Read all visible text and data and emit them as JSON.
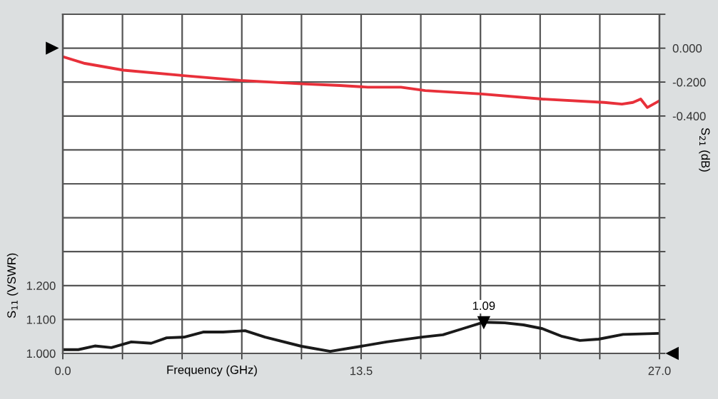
{
  "chart_data": {
    "type": "line",
    "xlabel": "Frequency (GHz)",
    "ylabel": "S$_{11}$ (VSWR)",
    "y2label": "S$_{21}$ (dB)",
    "grid": true,
    "legend": false,
    "marker": "none",
    "line_style": "solid",
    "xlim": [
      0,
      27
    ],
    "xticks": [
      {
        "value": 0,
        "label": "0.0"
      },
      {
        "value": 2.7,
        "label": null
      },
      {
        "value": 5.4,
        "label": null
      },
      {
        "value": 8.1,
        "label": null
      },
      {
        "value": 10.8,
        "label": null
      },
      {
        "value": 13.5,
        "label": "13.5"
      },
      {
        "value": 16.2,
        "label": null
      },
      {
        "value": 18.9,
        "label": null
      },
      {
        "value": 21.6,
        "label": null
      },
      {
        "value": 24.3,
        "label": null
      },
      {
        "value": 27,
        "label": "27.0"
      }
    ],
    "ylim": [
      1.0,
      2.0
    ],
    "yticks": [
      {
        "value": 1.0,
        "label": "1.000"
      },
      {
        "value": 1.1,
        "label": "1.100"
      },
      {
        "value": 1.2,
        "label": "1.200"
      },
      {
        "value": 1.3,
        "label": null
      },
      {
        "value": 1.4,
        "label": null
      },
      {
        "value": 1.5,
        "label": null
      },
      {
        "value": 1.6,
        "label": null
      },
      {
        "value": 1.7,
        "label": null
      },
      {
        "value": 1.8,
        "label": null
      },
      {
        "value": 1.9,
        "label": null
      },
      {
        "value": 2.0,
        "label": null
      }
    ],
    "y2lim": [
      -1.8,
      0.2
    ],
    "y2ticks": [
      {
        "value": 0.2,
        "label": null
      },
      {
        "value": 0,
        "label": "0.000"
      },
      {
        "value": -0.2,
        "label": "-0.200"
      },
      {
        "value": -0.4,
        "label": "-0.400"
      },
      {
        "value": -0.6,
        "label": null
      },
      {
        "value": -0.8,
        "label": null
      },
      {
        "value": -1.0,
        "label": null
      },
      {
        "value": -1.2,
        "label": null
      },
      {
        "value": -1.4,
        "label": null
      },
      {
        "value": -1.6,
        "label": null
      },
      {
        "value": -1.8,
        "label": null
      }
    ],
    "series": [
      {
        "color": "#1a1a1a",
        "x": [
          0,
          0.7,
          1.45,
          2.2,
          3.1,
          4.0,
          4.7,
          5.5,
          6.35,
          7.25,
          8.25,
          9.15,
          10.8,
          12.1,
          13.4,
          14.65,
          16.25,
          17.2,
          18.1,
          19.05,
          20.0,
          20.85,
          21.7,
          22.6,
          23.4,
          24.25,
          25.35,
          27
        ],
        "values": [
          1.011,
          1.011,
          1.022,
          1.017,
          1.034,
          1.03,
          1.046,
          1.048,
          1.063,
          1.063,
          1.067,
          1.048,
          1.021,
          1.006,
          1.02,
          1.034,
          1.048,
          1.055,
          1.073,
          1.092,
          1.09,
          1.084,
          1.073,
          1.05,
          1.038,
          1.042,
          1.056,
          1.059
        ]
      },
      {
        "color": "#e8303a",
        "axis": "y2",
        "x": [
          0,
          1.0,
          2.75,
          5.3,
          8.05,
          10.8,
          12.55,
          13.8,
          15.3,
          16.4,
          18.95,
          21.7,
          24.5,
          25.3,
          25.8,
          26.15,
          26.45,
          27
        ],
        "values": [
          -0.05,
          -0.09,
          -0.13,
          -0.16,
          -0.19,
          -0.21,
          -0.22,
          -0.23,
          -0.23,
          -0.25,
          -0.27,
          -0.3,
          -0.32,
          -0.33,
          -0.32,
          -0.3,
          -0.35,
          -0.31
        ]
      }
    ],
    "annotations": [
      {
        "text": "1.09",
        "x": 19.05,
        "y": 1.092
      }
    ]
  }
}
